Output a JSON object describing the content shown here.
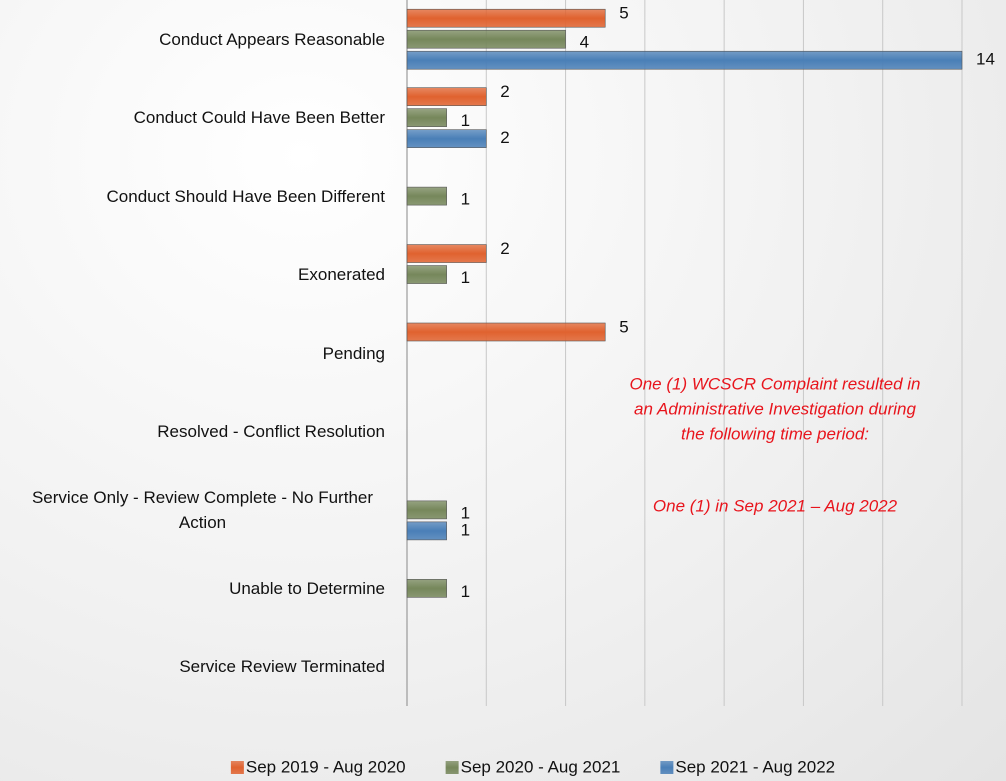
{
  "chart_data": {
    "type": "bar",
    "orientation": "horizontal",
    "categories": [
      "Conduct Appears Reasonable",
      "Conduct Could Have Been Better",
      "Conduct Should Have Been Different",
      "Exonerated",
      "Pending",
      "Resolved - Conflict Resolution",
      "Service Only - Review Complete - No Further Action",
      "Unable to Determine",
      "Service Review Terminated"
    ],
    "series": [
      {
        "name": "Sep 2019 - Aug 2020",
        "color": "#e0622f",
        "values": [
          5,
          2,
          null,
          2,
          5,
          null,
          null,
          null,
          null
        ]
      },
      {
        "name": "Sep 2020 - Aug 2021",
        "color": "#76875b",
        "values": [
          4,
          1,
          1,
          1,
          null,
          null,
          1,
          1,
          null
        ]
      },
      {
        "name": "Sep 2021 - Aug 2022",
        "color": "#4a7fb7",
        "values": [
          14,
          2,
          null,
          null,
          null,
          null,
          1,
          null,
          null
        ]
      }
    ],
    "xlim": [
      0,
      14
    ],
    "xticks": [
      0,
      2,
      4,
      6,
      8,
      10,
      12,
      14
    ],
    "grid": true,
    "legend": "bottom",
    "annotations": [
      "One (1) WCSCR Complaint resulted in",
      "an Administrative Investigation during",
      "the following time period:",
      "One (1) in Sep 2021 – Aug 2022"
    ],
    "annotation_color": "#e8141c"
  }
}
